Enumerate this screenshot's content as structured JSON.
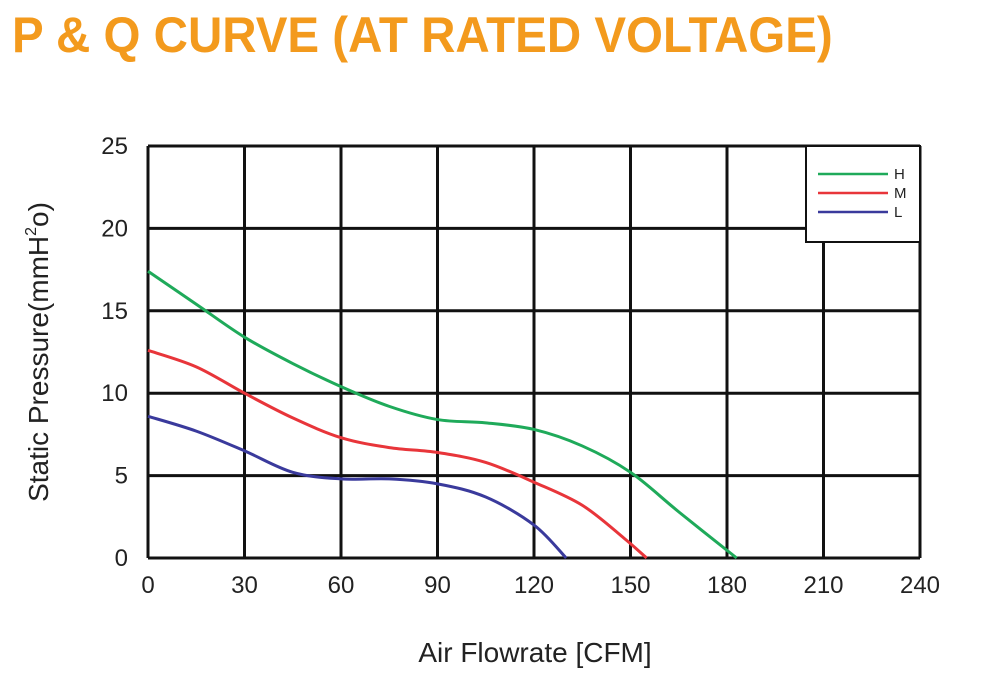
{
  "title": "P & Q CURVE (AT RATED VOLTAGE)",
  "chart_data": {
    "type": "line",
    "xlabel": "Air  Flowrate   [CFM]",
    "ylabel_parts": [
      "Static Pressure(mmH",
      "2",
      "o)"
    ],
    "xlim": [
      0,
      240
    ],
    "ylim": [
      0,
      25
    ],
    "x_ticks": [
      "0",
      "30",
      "60",
      "90",
      "120",
      "150",
      "180",
      "210",
      "240"
    ],
    "y_ticks": [
      "0",
      "5",
      "10",
      "15",
      "20",
      "25"
    ],
    "grid": true,
    "legend_position": "top-right",
    "series": [
      {
        "name": "H",
        "color": "#1faa5a",
        "points": [
          [
            0,
            17.4
          ],
          [
            15,
            15.4
          ],
          [
            30,
            13.4
          ],
          [
            45,
            11.8
          ],
          [
            60,
            10.4
          ],
          [
            75,
            9.2
          ],
          [
            90,
            8.4
          ],
          [
            105,
            8.2
          ],
          [
            120,
            7.8
          ],
          [
            135,
            6.8
          ],
          [
            150,
            5.2
          ],
          [
            165,
            2.8
          ],
          [
            183,
            0
          ]
        ]
      },
      {
        "name": "M",
        "color": "#e8353a",
        "points": [
          [
            0,
            12.6
          ],
          [
            15,
            11.6
          ],
          [
            30,
            10.0
          ],
          [
            45,
            8.5
          ],
          [
            60,
            7.3
          ],
          [
            75,
            6.7
          ],
          [
            90,
            6.4
          ],
          [
            105,
            5.8
          ],
          [
            120,
            4.6
          ],
          [
            135,
            3.2
          ],
          [
            148,
            1.2
          ],
          [
            155,
            0
          ]
        ]
      },
      {
        "name": "L",
        "color": "#3a3a9c",
        "points": [
          [
            0,
            8.6
          ],
          [
            15,
            7.7
          ],
          [
            30,
            6.5
          ],
          [
            45,
            5.2
          ],
          [
            60,
            4.8
          ],
          [
            75,
            4.8
          ],
          [
            90,
            4.5
          ],
          [
            105,
            3.7
          ],
          [
            120,
            2.0
          ],
          [
            130,
            0
          ]
        ]
      }
    ]
  }
}
